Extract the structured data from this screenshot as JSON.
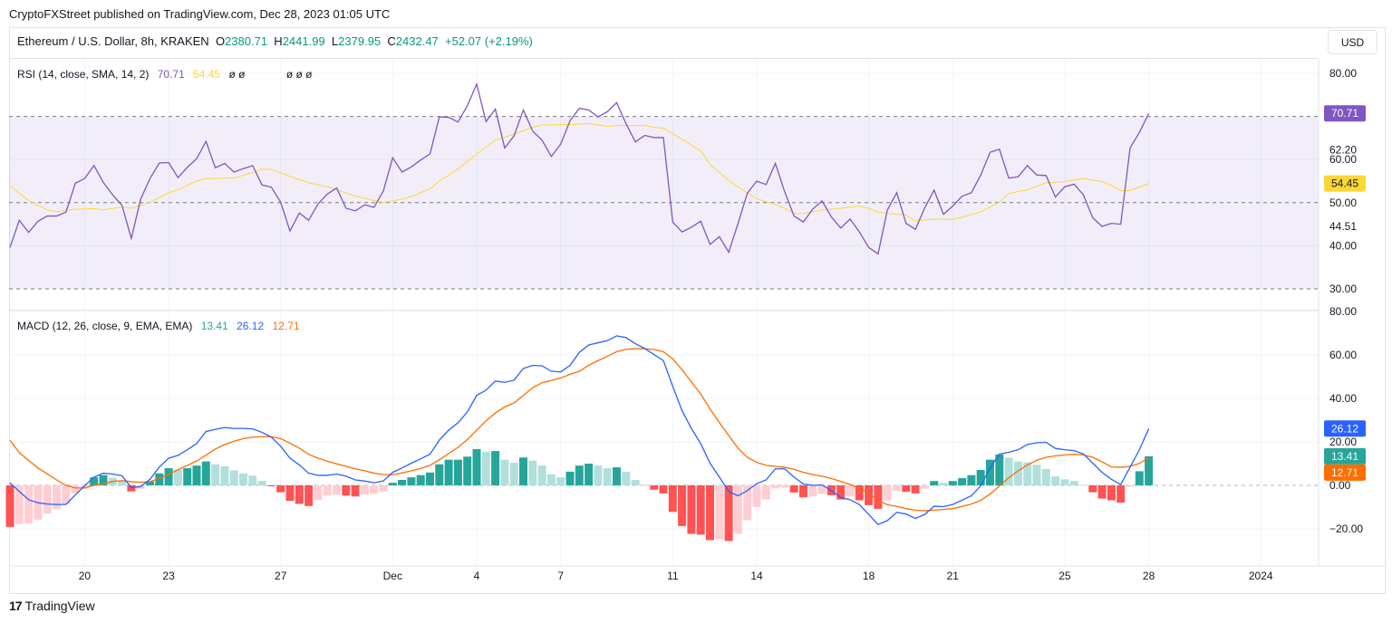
{
  "header": {
    "published": "CryptoFXStreet published on TradingView.com, Dec 28, 2023 01:05 UTC"
  },
  "symbol": {
    "name": "Ethereum / U.S. Dollar, 8h, KRAKEN",
    "o_label": "O",
    "o": "2380.71",
    "h_label": "H",
    "h": "2441.99",
    "l_label": "L",
    "l": "2379.95",
    "c_label": "C",
    "c": "2432.47",
    "change": "+52.07 (+2.19%)"
  },
  "currency_button": "USD",
  "rsi_legend": {
    "title": "RSI (14, close, SMA, 14, 2)",
    "rsi": "70.71",
    "ma": "54.45",
    "na1": "ø ø",
    "na2": "ø ø ø"
  },
  "macd_legend": {
    "title": "MACD (12, 26, close, 9, EMA, EMA)",
    "hist": "13.41",
    "macd": "26.12",
    "signal": "12.71"
  },
  "footer": {
    "brand": "TradingView"
  },
  "colors": {
    "rsi": "#7e57c2",
    "rsi_ma": "#fdd835",
    "macd": "#2962ff",
    "signal": "#ff6d00",
    "hist_up_strong": "#26a69a",
    "hist_up_weak": "#b2dfdb",
    "hist_down_strong": "#ff5252",
    "hist_down_weak": "#ffcdd2",
    "up_text": "#089981"
  },
  "chart_data": [
    {
      "type": "line",
      "title": "RSI (14, close, SMA, 14, 2)",
      "x_unit": "8h bar index (0 = Nov 17 08:00)",
      "ylim": [
        30,
        80
      ],
      "y_ticks": [
        "80.00",
        "60.00",
        "50.00",
        "40.00",
        "30.00"
      ],
      "extra_labels": [
        "62.20",
        "44.51"
      ],
      "bands": {
        "upper": 70,
        "middle": 50,
        "lower": 30
      },
      "last_badges": {
        "rsi": "70.71",
        "ma": "54.45"
      },
      "series": [
        {
          "name": "RSI",
          "values": [
            39.6,
            45.9,
            43.1,
            45.7,
            46.9,
            46.9,
            47.8,
            54.5,
            55.6,
            58.6,
            54.7,
            51.8,
            49.4,
            41.7,
            50.8,
            55.6,
            59.2,
            59.3,
            55.8,
            58.2,
            60.2,
            64.2,
            58.1,
            59.1,
            57.1,
            57.9,
            58.6,
            54.1,
            53.6,
            50.1,
            43.4,
            47.6,
            45.9,
            49.7,
            52.0,
            53.4,
            48.7,
            48.1,
            49.5,
            48.9,
            52.7,
            60.4,
            57.1,
            58.3,
            59.9,
            61.3,
            69.9,
            69.8,
            68.7,
            72.5,
            77.5,
            68.8,
            71.7,
            62.7,
            65.5,
            71.5,
            66.6,
            64.5,
            60.7,
            63.6,
            69.0,
            71.9,
            71.5,
            69.9,
            71.1,
            73.2,
            68.3,
            64.1,
            65.6,
            65.1,
            65.1,
            45.5,
            43.2,
            44.3,
            45.7,
            40.3,
            42.1,
            38.5,
            45.2,
            52.2,
            55.0,
            54.2,
            59.1,
            52.5,
            46.9,
            45.5,
            48.5,
            50.4,
            46.7,
            44.1,
            46.2,
            43.2,
            39.6,
            38.1,
            48.3,
            52.3,
            45.2,
            43.8,
            48.8,
            52.9,
            47.3,
            49.2,
            51.5,
            52.3,
            56.4,
            61.7,
            62.4,
            55.7,
            56.0,
            58.6,
            56.4,
            56.3,
            51.3,
            53.7,
            54.3,
            51.8,
            46.5,
            44.5,
            45.2,
            45.0,
            62.7,
            66.3,
            70.71
          ]
        },
        {
          "name": "RSI-based MA",
          "points": [
            [
              0,
              53.9
            ],
            [
              2,
              50.5
            ],
            [
              4,
              48.3
            ],
            [
              5,
              47.9
            ],
            [
              7,
              48.5
            ],
            [
              9,
              48.6
            ],
            [
              10,
              48.3
            ],
            [
              12,
              49.0
            ],
            [
              13,
              48.7
            ],
            [
              15,
              50.1
            ],
            [
              17,
              52.3
            ],
            [
              18,
              53.0
            ],
            [
              20,
              55.0
            ],
            [
              21,
              55.6
            ],
            [
              24,
              55.7
            ],
            [
              26,
              57.0
            ],
            [
              27,
              57.8
            ],
            [
              28,
              57.7
            ],
            [
              30,
              56.1
            ],
            [
              32,
              54.6
            ],
            [
              34,
              53.7
            ],
            [
              35,
              53.0
            ],
            [
              37,
              51.5
            ],
            [
              39,
              50.5
            ],
            [
              40,
              50.0
            ],
            [
              42,
              50.8
            ],
            [
              43,
              51.4
            ],
            [
              45,
              53.2
            ],
            [
              46,
              55.0
            ],
            [
              48,
              57.8
            ],
            [
              50,
              61.3
            ],
            [
              52,
              64.5
            ],
            [
              54,
              65.9
            ],
            [
              56,
              67.5
            ],
            [
              57,
              68.0
            ],
            [
              59,
              68.1
            ],
            [
              61,
              68.2
            ],
            [
              62,
              68.4
            ],
            [
              64,
              67.7
            ],
            [
              65,
              67.9
            ],
            [
              68,
              67.9
            ],
            [
              69,
              67.5
            ],
            [
              70,
              67.3
            ],
            [
              72,
              64.7
            ],
            [
              74,
              62.0
            ],
            [
              75,
              58.9
            ],
            [
              77,
              55.1
            ],
            [
              79,
              52.2
            ],
            [
              80,
              50.9
            ],
            [
              82,
              49.6
            ],
            [
              83,
              48.7
            ],
            [
              84,
              47.5
            ],
            [
              85,
              47.5
            ],
            [
              87,
              48.3
            ],
            [
              89,
              48.7
            ],
            [
              91,
              49.2
            ],
            [
              92,
              48.7
            ],
            [
              93,
              47.8
            ],
            [
              95,
              47.3
            ],
            [
              96,
              47.1
            ],
            [
              97,
              45.8
            ],
            [
              99,
              46.2
            ],
            [
              101,
              46.1
            ],
            [
              102,
              46.6
            ],
            [
              104,
              47.9
            ],
            [
              106,
              50.1
            ],
            [
              107,
              52.1
            ],
            [
              109,
              53.0
            ],
            [
              111,
              54.6
            ],
            [
              113,
              54.9
            ],
            [
              115,
              55.6
            ],
            [
              117,
              54.9
            ],
            [
              118,
              54.0
            ],
            [
              119,
              52.8
            ],
            [
              120,
              52.8
            ],
            [
              122,
              54.45
            ]
          ]
        }
      ]
    },
    {
      "type": "bar+line",
      "title": "MACD (12, 26, close, 9, EMA, EMA)",
      "x_unit": "8h bar index (0 = Nov 17 08:00)",
      "ylim": [
        -25,
        80
      ],
      "y_ticks": [
        "80.00",
        "60.00",
        "40.00",
        "20.00",
        "0.00",
        "−20.00"
      ],
      "last_badges": {
        "macd": "26.12",
        "histogram": "13.41",
        "signal": "12.71"
      },
      "series": [
        {
          "name": "MACD",
          "values": [
            1.2,
            -2.8,
            -6.6,
            -8.0,
            -8.6,
            -8.8,
            -8.8,
            -4.4,
            -0.2,
            3.8,
            5.6,
            5.2,
            4.4,
            -1.0,
            -0.6,
            2.8,
            8.4,
            12.5,
            13.8,
            16.4,
            19.2,
            24.8,
            25.8,
            26.6,
            26.2,
            26.2,
            26.0,
            24.4,
            22.2,
            18.0,
            12.5,
            9.4,
            5.6,
            4.6,
            4.6,
            5.2,
            4.2,
            2.5,
            2.0,
            1.2,
            2.0,
            6.0,
            8.0,
            10.2,
            12.2,
            14.4,
            20.8,
            25.4,
            28.8,
            33.8,
            41.4,
            43.8,
            48.0,
            47.4,
            48.4,
            53.8,
            55.2,
            55.0,
            52.5,
            52.2,
            55.2,
            61.2,
            64.6,
            65.6,
            66.6,
            68.8,
            68.0,
            65.2,
            63.0,
            60.2,
            57.4,
            45.6,
            34.4,
            26.2,
            19.2,
            10.2,
            3.8,
            -2.8,
            -4.8,
            -2.4,
            0.8,
            2.5,
            7.6,
            7.6,
            3.8,
            0.6,
            0.0,
            0.2,
            -2.4,
            -5.6,
            -6.6,
            -8.8,
            -13.4,
            -18.0,
            -16.2,
            -12.4,
            -13.2,
            -15.2,
            -13.4,
            -9.6,
            -9.8,
            -8.8,
            -6.8,
            -4.8,
            -0.2,
            8.0,
            14.4,
            15.2,
            16.4,
            18.8,
            19.6,
            19.8,
            17.0,
            16.4,
            16.0,
            14.4,
            10.2,
            6.0,
            2.8,
            0.4,
            8.4,
            16.4,
            26.12
          ]
        },
        {
          "name": "Signal",
          "values": [
            20.8,
            15.0,
            11.5,
            8.0,
            5.3,
            2.5,
            0.0,
            -1.2,
            -1.2,
            0.0,
            0.8,
            1.8,
            2.2,
            1.7,
            1.4,
            1.7,
            3.2,
            5.0,
            7.2,
            9.2,
            11.2,
            13.9,
            16.7,
            18.8,
            20.3,
            21.5,
            22.2,
            22.4,
            22.4,
            21.5,
            19.4,
            17.1,
            14.3,
            12.5,
            11.1,
            9.9,
            8.75,
            7.6,
            6.7,
            5.6,
            5.0,
            4.9,
            5.7,
            6.7,
            7.8,
            9.2,
            11.8,
            14.6,
            17.5,
            21.1,
            25.4,
            29.7,
            33.3,
            36.1,
            37.9,
            41.4,
            44.9,
            47.2,
            48.3,
            49.4,
            51.1,
            52.5,
            55.3,
            57.4,
            59.4,
            61.5,
            62.6,
            62.9,
            62.9,
            62.5,
            61.5,
            58.3,
            53.2,
            47.6,
            42.1,
            35.1,
            28.9,
            22.9,
            17.1,
            12.9,
            10.6,
            9.2,
            8.75,
            8.3,
            7.4,
            6.0,
            5.0,
            4.2,
            3.2,
            1.8,
            0.4,
            -1.4,
            -3.75,
            -6.9,
            -8.9,
            -9.7,
            -10.7,
            -11.4,
            -11.7,
            -11.4,
            -11.1,
            -10.7,
            -9.7,
            -8.6,
            -6.9,
            -4.0,
            -0.3,
            3.5,
            6.7,
            9.4,
            11.5,
            12.9,
            13.6,
            14.0,
            14.3,
            14.0,
            12.9,
            10.8,
            8.5,
            8.3,
            8.75,
            10.1,
            12.71
          ]
        },
        {
          "name": "Histogram",
          "values": [
            -19.1,
            -17.7,
            -17.5,
            -15.8,
            -13.0,
            -10.8,
            -8.5,
            -3.7,
            -1.6,
            3.7,
            4.7,
            3.5,
            2.0,
            -2.8,
            -1.6,
            1.8,
            5.5,
            7.9,
            7.3,
            7.9,
            9.1,
            11.0,
            9.7,
            8.7,
            6.9,
            5.5,
            4.5,
            2.0,
            -0.2,
            -3.2,
            -7.1,
            -8.5,
            -9.5,
            -6.7,
            -4.7,
            -4.3,
            -4.7,
            -5.1,
            -4.3,
            -3.9,
            -2.8,
            1.2,
            2.5,
            3.7,
            4.7,
            5.9,
            9.7,
            11.8,
            11.8,
            13.2,
            16.7,
            15.4,
            15.8,
            11.8,
            10.4,
            12.8,
            11.4,
            9.1,
            5.1,
            3.7,
            6.3,
            9.1,
            10.0,
            9.1,
            7.9,
            8.3,
            6.3,
            2.5,
            0.3,
            -2.0,
            -3.7,
            -12.2,
            -18.7,
            -22.3,
            -22.7,
            -25.2,
            -24.8,
            -25.6,
            -22.3,
            -16.0,
            -10.0,
            -6.5,
            -1.4,
            -1.0,
            -3.3,
            -5.5,
            -5.1,
            -3.9,
            -4.5,
            -6.5,
            -5.1,
            -6.9,
            -9.1,
            -10.8,
            -6.9,
            -2.5,
            -3.0,
            -3.7,
            -1.6,
            2.0,
            1.2,
            2.0,
            3.3,
            4.7,
            7.1,
            11.8,
            14.2,
            12.8,
            11.0,
            10.6,
            9.5,
            7.5,
            4.1,
            2.8,
            2.0,
            0.2,
            -3.2,
            -6.1,
            -6.9,
            -7.9,
            -0.6,
            6.5,
            13.41
          ]
        }
      ]
    }
  ],
  "time_axis": [
    {
      "label": "20",
      "bar": 8
    },
    {
      "label": "23",
      "bar": 17
    },
    {
      "label": "27",
      "bar": 29
    },
    {
      "label": "Dec",
      "bar": 41
    },
    {
      "label": "4",
      "bar": 50
    },
    {
      "label": "7",
      "bar": 59
    },
    {
      "label": "11",
      "bar": 71
    },
    {
      "label": "14",
      "bar": 80
    },
    {
      "label": "18",
      "bar": 92
    },
    {
      "label": "21",
      "bar": 101
    },
    {
      "label": "25",
      "bar": 113
    },
    {
      "label": "28",
      "bar": 122
    },
    {
      "label": "2024",
      "bar": 134
    }
  ]
}
